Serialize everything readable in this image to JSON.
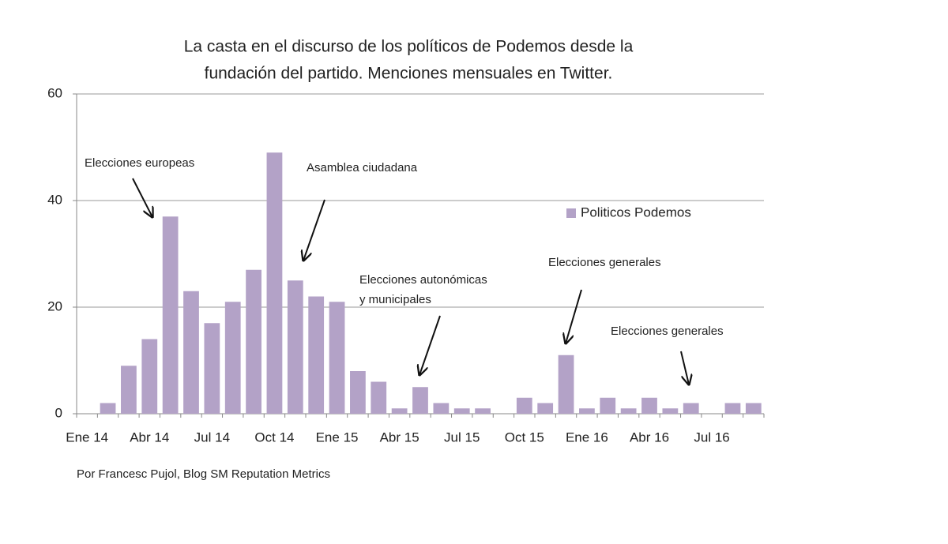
{
  "chart_data": {
    "type": "bar",
    "title": [
      "La casta en el discurso de los políticos de Podemos desde la",
      "fundación del partido. Menciones mensuales en Twitter."
    ],
    "categories": [
      "Ene 14",
      null,
      null,
      "Abr 14",
      null,
      null,
      "Jul 14",
      null,
      null,
      "Oct 14",
      null,
      null,
      "Ene 15",
      null,
      null,
      "Abr 15",
      null,
      null,
      "Jul 15",
      null,
      null,
      "Oct 15",
      null,
      null,
      "Ene 16",
      null,
      null,
      "Abr 16",
      null,
      null,
      "Jul 16",
      null,
      null
    ],
    "series": [
      {
        "name": "Politicos Podemos",
        "color": "#b3a2c7",
        "values": [
          0,
          2,
          9,
          14,
          37,
          23,
          17,
          21,
          27,
          49,
          25,
          22,
          21,
          8,
          6,
          1,
          5,
          2,
          1,
          1,
          0,
          3,
          2,
          11,
          1,
          3,
          1,
          3,
          1,
          2,
          0,
          2,
          2
        ]
      }
    ],
    "ylim": [
      0,
      60
    ],
    "yticks": [
      0,
      20,
      40,
      60
    ],
    "grid": true,
    "annotations": [
      {
        "text": [
          "Elecciones europeas"
        ]
      },
      {
        "text": [
          "Asamblea ciudadana"
        ]
      },
      {
        "text": [
          "Elecciones autonómicas",
          "y municipales"
        ]
      },
      {
        "text": [
          "Elecciones generales"
        ]
      },
      {
        "text": [
          "Elecciones generales"
        ]
      }
    ],
    "source": "Por Francesc Pujol, Blog SM Reputation Metrics"
  }
}
